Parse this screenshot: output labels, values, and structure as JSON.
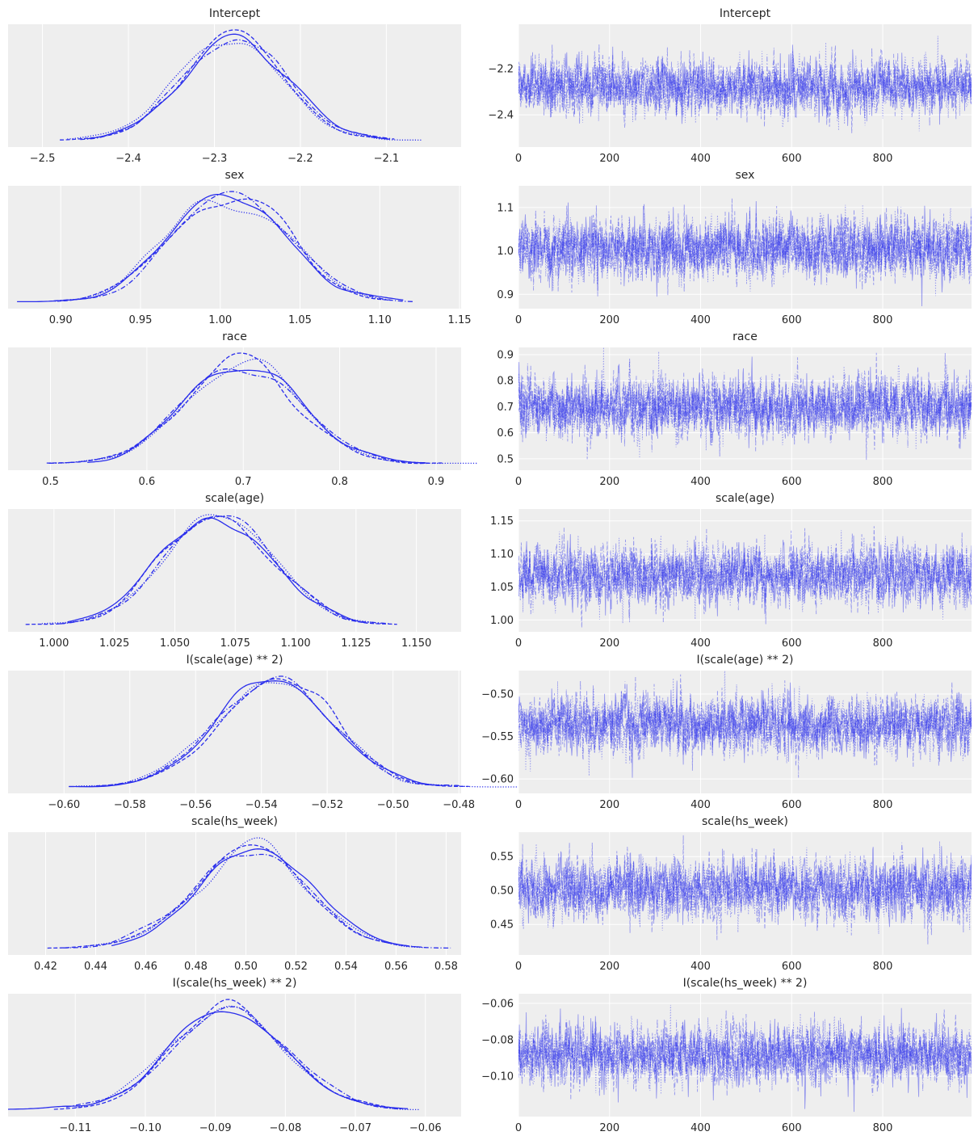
{
  "chart_data": {
    "type": "line",
    "description_kind": "trace plot",
    "colors": {
      "line": "#2a2eec",
      "panel": "#eeeeee",
      "grid": "#ffffff",
      "text": "#262626"
    },
    "chains": 4,
    "draws": 1000,
    "chain_linestyles": [
      "solid",
      "dashed",
      "dotted",
      "dashdot"
    ],
    "trace_xlim": [
      0,
      995
    ],
    "trace_xticks": [
      0,
      200,
      400,
      600,
      800
    ],
    "variables": [
      {
        "name": "Intercept",
        "mean": -2.28,
        "sd": 0.06,
        "density_xlim": [
          -2.54,
          -2.013
        ],
        "density_xticks": [
          -2.5,
          -2.4,
          -2.3,
          -2.2,
          -2.1
        ],
        "density_xtick_labels": [
          "−2.5",
          "−2.4",
          "−2.3",
          "−2.2",
          "−2.1"
        ],
        "trace_ylim": [
          -2.54,
          -2.007
        ],
        "trace_yticks": [
          -2.2,
          -2.4
        ],
        "trace_ytick_labels": [
          "−2.2",
          "−2.4"
        ]
      },
      {
        "name": "sex",
        "mean": 1.005,
        "sd": 0.035,
        "density_xlim": [
          0.867,
          1.151
        ],
        "density_xticks": [
          0.9,
          0.95,
          1.0,
          1.05,
          1.1,
          1.15
        ],
        "density_xtick_labels": [
          "0.90",
          "0.95",
          "1.00",
          "1.05",
          "1.10",
          "1.15"
        ],
        "trace_ylim": [
          0.867,
          1.15
        ],
        "trace_yticks": [
          0.9,
          1.0,
          1.1
        ],
        "trace_ytick_labels": [
          "0.9",
          "1.0",
          "1.1"
        ]
      },
      {
        "name": "race",
        "mean": 0.7,
        "sd": 0.058,
        "density_xlim": [
          0.456,
          0.926
        ],
        "density_xticks": [
          0.5,
          0.6,
          0.7,
          0.8,
          0.9
        ],
        "density_xtick_labels": [
          "0.5",
          "0.6",
          "0.7",
          "0.8",
          "0.9"
        ],
        "trace_ylim": [
          0.456,
          0.928
        ],
        "trace_yticks": [
          0.5,
          0.6,
          0.7,
          0.8,
          0.9
        ],
        "trace_ytick_labels": [
          "0.5",
          "0.6",
          "0.7",
          "0.8",
          "0.9"
        ]
      },
      {
        "name": "scale(age)",
        "mean": 1.069,
        "sd": 0.022,
        "density_xlim": [
          0.981,
          1.1685
        ],
        "density_xticks": [
          1.0,
          1.025,
          1.05,
          1.075,
          1.1,
          1.125,
          1.15
        ],
        "density_xtick_labels": [
          "1.000",
          "1.025",
          "1.050",
          "1.075",
          "1.100",
          "1.125",
          "1.150"
        ],
        "trace_ylim": [
          0.982,
          1.168
        ],
        "trace_yticks": [
          1.0,
          1.05,
          1.1,
          1.15
        ],
        "trace_ytick_labels": [
          "1.00",
          "1.05",
          "1.10",
          "1.15"
        ]
      },
      {
        "name": "I(scale(age) ** 2)",
        "mean": -0.536,
        "sd": 0.017,
        "density_xlim": [
          -0.617,
          -0.4793
        ],
        "density_xticks": [
          -0.6,
          -0.58,
          -0.56,
          -0.54,
          -0.52,
          -0.5,
          -0.48
        ],
        "density_xtick_labels": [
          "−0.60",
          "−0.58",
          "−0.56",
          "−0.54",
          "−0.52",
          "−0.50",
          "−0.48"
        ],
        "trace_ylim": [
          -0.617,
          -0.4724
        ],
        "trace_yticks": [
          -0.6,
          -0.55,
          -0.5
        ],
        "trace_ytick_labels": [
          "−0.60",
          "−0.55",
          "−0.50"
        ]
      },
      {
        "name": "scale(hs_week)",
        "mean": 0.502,
        "sd": 0.022,
        "density_xlim": [
          0.405,
          0.586
        ],
        "density_xticks": [
          0.42,
          0.44,
          0.46,
          0.48,
          0.5,
          0.52,
          0.54,
          0.56,
          0.58
        ],
        "density_xtick_labels": [
          "0.42",
          "0.44",
          "0.46",
          "0.48",
          "0.50",
          "0.52",
          "0.54",
          "0.56",
          "0.58"
        ],
        "trace_ylim": [
          0.405,
          0.586
        ],
        "trace_yticks": [
          0.45,
          0.5,
          0.55
        ],
        "trace_ytick_labels": [
          "0.45",
          "0.50",
          "0.55"
        ]
      },
      {
        "name": "I(scale(hs_week) ** 2)",
        "mean": -0.088,
        "sd": 0.008,
        "density_xlim": [
          -0.1196,
          -0.0549
        ],
        "density_xticks": [
          -0.11,
          -0.1,
          -0.09,
          -0.08,
          -0.07,
          -0.06
        ],
        "density_xtick_labels": [
          "−0.11",
          "−0.10",
          "−0.09",
          "−0.08",
          "−0.07",
          "−0.06"
        ],
        "trace_ylim": [
          -0.1222,
          -0.0547
        ],
        "trace_yticks": [
          -0.1,
          -0.08,
          -0.06
        ],
        "trace_ytick_labels": [
          "−0.10",
          "−0.08",
          "−0.06"
        ]
      }
    ]
  }
}
